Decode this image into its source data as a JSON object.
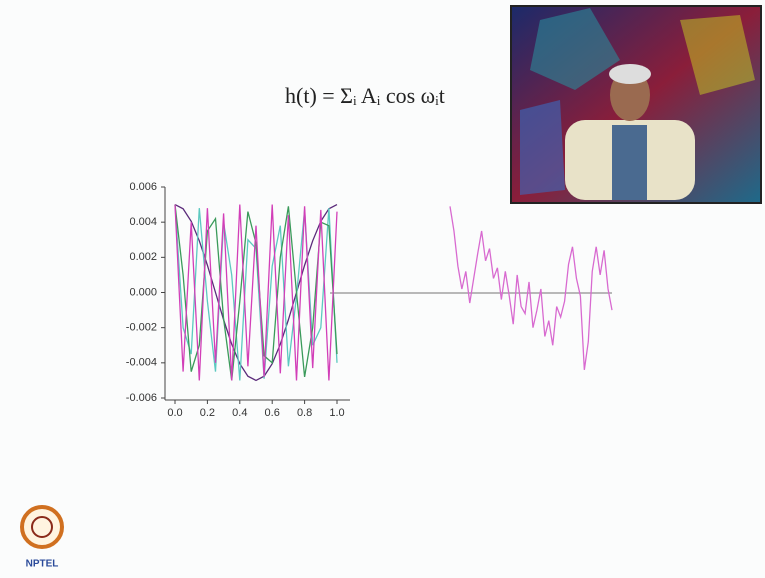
{
  "formula": "h(t) = Σᵢ Aᵢ cos ωᵢt",
  "logo": "NPTEL",
  "chart_data": [
    {
      "type": "line",
      "x": [
        0,
        0.05,
        0.1,
        0.15,
        0.2,
        0.25,
        0.3,
        0.35,
        0.4,
        0.45,
        0.5,
        0.55,
        0.6,
        0.65,
        0.7,
        0.75,
        0.8,
        0.85,
        0.9,
        0.95,
        1.0
      ],
      "series": [
        {
          "color": "#5a2a7a",
          "values": [
            0.005,
            0.00476,
            0.00405,
            0.00294,
            0.00155,
            0,
            -0.00155,
            -0.00294,
            -0.00405,
            -0.00476,
            -0.005,
            -0.00476,
            -0.00405,
            -0.00294,
            -0.00155,
            0,
            0.00155,
            0.00294,
            0.00405,
            0.00476,
            0.005
          ]
        },
        {
          "color": "#5cc9c0",
          "values": [
            0.005,
            -0.002,
            -0.0035,
            0.0048,
            -0.0005,
            -0.0045,
            0.004,
            0.001,
            -0.005,
            0.003,
            0.0025,
            -0.0049,
            0.0015,
            0.0038,
            -0.0042,
            -0.0002,
            0.0047,
            -0.003,
            -0.002,
            0.0048,
            -0.004
          ]
        },
        {
          "color": "#3a9a5a",
          "values": [
            0.005,
            0.001,
            -0.0045,
            -0.003,
            0.0035,
            0.0042,
            -0.0015,
            -0.005,
            -0.0005,
            0.0046,
            0.0028,
            -0.0036,
            -0.004,
            0.002,
            0.0049,
            0.0,
            -0.0048,
            -0.002,
            0.004,
            0.0038,
            -0.0035
          ]
        },
        {
          "color": "#d23fb8",
          "values": [
            0.005,
            -0.0045,
            0.004,
            -0.005,
            0.0048,
            -0.004,
            0.0045,
            -0.005,
            0.005,
            -0.0042,
            0.0038,
            -0.0048,
            0.005,
            -0.0046,
            0.0044,
            -0.005,
            0.0049,
            -0.0043,
            0.0047,
            -0.005,
            0.0046
          ]
        }
      ],
      "xlim": [
        0,
        1.0
      ],
      "ylim": [
        -0.006,
        0.006
      ],
      "xticks": [
        {
          "value": 0,
          "label": "0.0"
        },
        0.2,
        0.4,
        0.6,
        0.8,
        {
          "value": 1.0,
          "label": "1.0"
        }
      ],
      "yticks": [
        {
          "value": -0.006,
          "label": "-0.006"
        },
        {
          "value": -0.004,
          "label": "-0.004"
        },
        {
          "value": -0.002,
          "label": "-0.002"
        },
        {
          "value": 0,
          "label": "0.000"
        },
        {
          "value": 0.002,
          "label": "0.002"
        },
        {
          "value": 0.004,
          "label": "0.004"
        },
        {
          "value": 0.006,
          "label": "0.006"
        }
      ]
    },
    {
      "type": "line",
      "color": "#d86ad0",
      "ylim": [
        -0.006,
        0.006
      ],
      "values": [
        0.0049,
        0.0035,
        0.0015,
        0.0002,
        0.0012,
        -0.0006,
        0.0008,
        0.0022,
        0.0035,
        0.0018,
        0.0025,
        0.0008,
        0.0014,
        -0.0004,
        0.0012,
        -0.0002,
        -0.0018,
        0.001,
        -0.0008,
        -0.0012,
        0.0006,
        -0.002,
        -0.001,
        0.0002,
        -0.0025,
        -0.0016,
        -0.003,
        -0.0008,
        -0.0014,
        -0.0005,
        0.0016,
        0.0026,
        0.0008,
        -0.0002,
        -0.0044,
        -0.0028,
        0.0012,
        0.0026,
        0.001,
        0.0024,
        0.0002,
        -0.001
      ]
    }
  ]
}
